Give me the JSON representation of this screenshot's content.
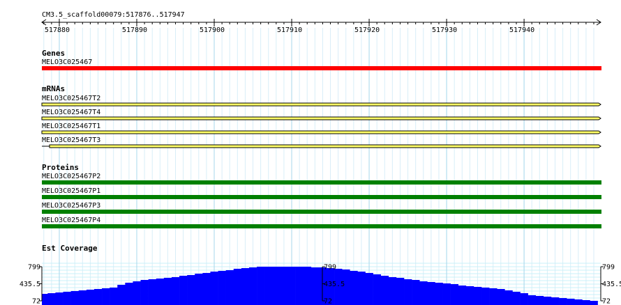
{
  "ruler": {
    "title": "CM3.5_scaffold00079:517876..517947",
    "xlim": [
      517877.75,
      517949.9
    ],
    "xticks": [
      517880,
      517890,
      517900,
      517910,
      517920,
      517930,
      517940
    ]
  },
  "genes": {
    "title": "Genes",
    "items": [
      "MELO3C025467"
    ]
  },
  "mrnas": {
    "title": "mRNAs",
    "items": [
      "MELO3C025467T2",
      "MELO3C025467T4",
      "MELO3C025467T1",
      "MELO3C025467T3"
    ]
  },
  "proteins": {
    "title": "Proteins",
    "items": [
      "MELO3C025467P2",
      "MELO3C025467P1",
      "MELO3C025467P3",
      "MELO3C025467P4"
    ]
  },
  "chart_data": {
    "type": "bar",
    "title": "Est Coverage",
    "color": "#0000ff",
    "ylim": [
      72,
      799
    ],
    "yticks": [
      72,
      435.5,
      799
    ],
    "x": [
      517878,
      517879,
      517880,
      517881,
      517882,
      517883,
      517884,
      517885,
      517886,
      517887,
      517888,
      517889,
      517890,
      517891,
      517892,
      517893,
      517894,
      517895,
      517896,
      517897,
      517898,
      517899,
      517900,
      517901,
      517902,
      517903,
      517904,
      517905,
      517906,
      517907,
      517908,
      517909,
      517910,
      517911,
      517912,
      517913,
      517914,
      517915,
      517916,
      517917,
      517918,
      517919,
      517920,
      517921,
      517922,
      517923,
      517924,
      517925,
      517926,
      517927,
      517928,
      517929,
      517930,
      517931,
      517932,
      517933,
      517934,
      517935,
      517936,
      517937,
      517938,
      517939,
      517940,
      517941,
      517942,
      517943,
      517944,
      517945,
      517946,
      517947,
      517948,
      517949
    ],
    "values": [
      220,
      235,
      250,
      265,
      280,
      295,
      310,
      324,
      339,
      354,
      413,
      458,
      487,
      517,
      532,
      547,
      562,
      577,
      606,
      621,
      651,
      666,
      695,
      710,
      725,
      755,
      769,
      784,
      799,
      799,
      799,
      799,
      799,
      799,
      799,
      784,
      784,
      769,
      755,
      740,
      710,
      695,
      666,
      636,
      606,
      577,
      562,
      532,
      517,
      487,
      473,
      458,
      443,
      428,
      398,
      384,
      369,
      354,
      339,
      324,
      295,
      265,
      235,
      191,
      176,
      161,
      146,
      131,
      117,
      102,
      87,
      72
    ]
  }
}
